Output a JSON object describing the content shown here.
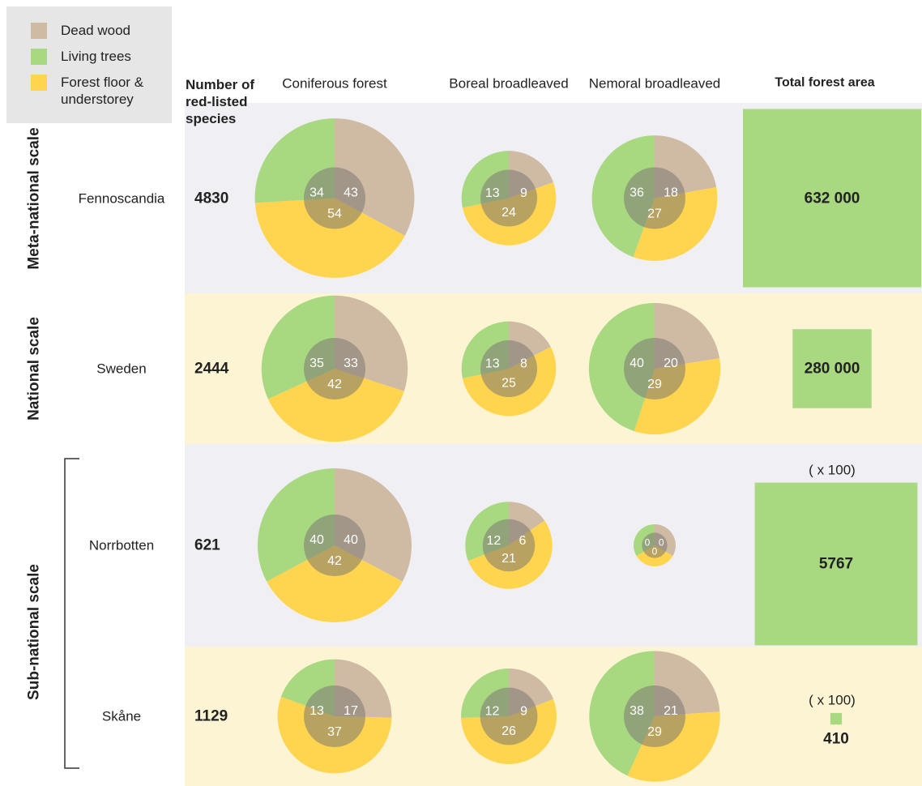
{
  "chart_data": {
    "type": "pie-grid",
    "legend": [
      {
        "name": "Dead wood",
        "color": "#cfbba3"
      },
      {
        "name": "Living trees",
        "color": "#a8d880"
      },
      {
        "name": "Forest floor & understorey",
        "color": "#ffd54f"
      }
    ],
    "species_header": "Number of red-listed species",
    "columns": [
      "Coniferous forest",
      "Boreal broadleaved",
      "Nemoral broadleaved"
    ],
    "total_header": "Total forest area",
    "scales": [
      {
        "label": "Meta-national scale",
        "rows": [
          {
            "region": "Fennoscandia",
            "species": 4830,
            "pies": [
              [
                43,
                34,
                54
              ],
              [
                9,
                13,
                24
              ],
              [
                18,
                36,
                27
              ]
            ],
            "area": {
              "value": 632000,
              "label": "632 000"
            }
          }
        ]
      },
      {
        "label": "National scale",
        "rows": [
          {
            "region": "Sweden",
            "species": 2444,
            "pies": [
              [
                33,
                35,
                42
              ],
              [
                8,
                13,
                25
              ],
              [
                20,
                40,
                29
              ]
            ],
            "area": {
              "value": 280000,
              "label": "280 000"
            }
          }
        ]
      },
      {
        "label": "Sub-national scale",
        "rows": [
          {
            "region": "Norrbotten",
            "species": 621,
            "pies": [
              [
                40,
                40,
                42
              ],
              [
                6,
                12,
                21
              ],
              [
                0,
                0,
                0
              ]
            ],
            "area": {
              "value": 5767,
              "label": "5767",
              "multiplier": {
                "value": 100,
                "label": "( x 100)"
              }
            }
          },
          {
            "region": "Skåne",
            "species": 1129,
            "pies": [
              [
                17,
                13,
                37
              ],
              [
                9,
                12,
                26
              ],
              [
                21,
                38,
                29
              ]
            ],
            "area": {
              "value": 410,
              "label": "410",
              "multiplier": {
                "value": 100,
                "label": "( x 100)"
              }
            }
          }
        ]
      }
    ]
  }
}
